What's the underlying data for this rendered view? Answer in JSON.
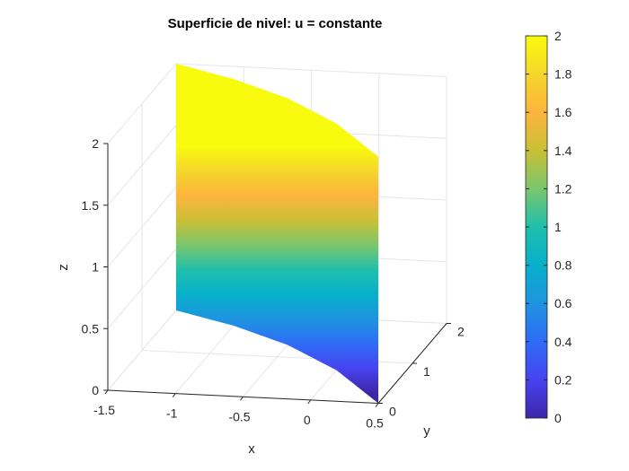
{
  "chart_data": {
    "type": "surface",
    "title": "Superficie de nivel: u = constante",
    "xlabel": "x",
    "ylabel": "y",
    "zlabel": "z",
    "xlim": [
      -1.5,
      0.5
    ],
    "ylim": [
      0,
      2
    ],
    "zlim": [
      0,
      2
    ],
    "x_ticks": [
      "-1.5",
      "-1",
      "-0.5",
      "0",
      "0.5"
    ],
    "y_ticks": [
      "0",
      "1",
      "2"
    ],
    "z_ticks": [
      "0",
      "0.5",
      "1",
      "1.5",
      "2"
    ],
    "colorbar": {
      "range": [
        0,
        2
      ],
      "ticks": [
        "0",
        "0.2",
        "0.4",
        "0.6",
        "0.8",
        "1",
        "1.2",
        "1.4",
        "1.6",
        "1.8",
        "2"
      ],
      "colormap": "parula",
      "colors": [
        "#3e26a8",
        "#4743f0",
        "#2f6cf6",
        "#1e94e0",
        "#07b0cb",
        "#1fbfab",
        "#7ac66d",
        "#c9c036",
        "#fdb43d",
        "#f5d62a",
        "#f9fb0e"
      ]
    },
    "surface": {
      "description_curve_points": [
        {
          "x": -1.5,
          "y": 2.0
        },
        {
          "x": -1.0,
          "y": 1.7
        },
        {
          "x": -0.5,
          "y": 1.3
        },
        {
          "x": 0.0,
          "y": 0.75
        },
        {
          "x": 0.3,
          "y": 0.3
        },
        {
          "x": 0.5,
          "y": 0.0
        }
      ],
      "z_range": [
        0,
        2
      ]
    },
    "grid": true
  }
}
